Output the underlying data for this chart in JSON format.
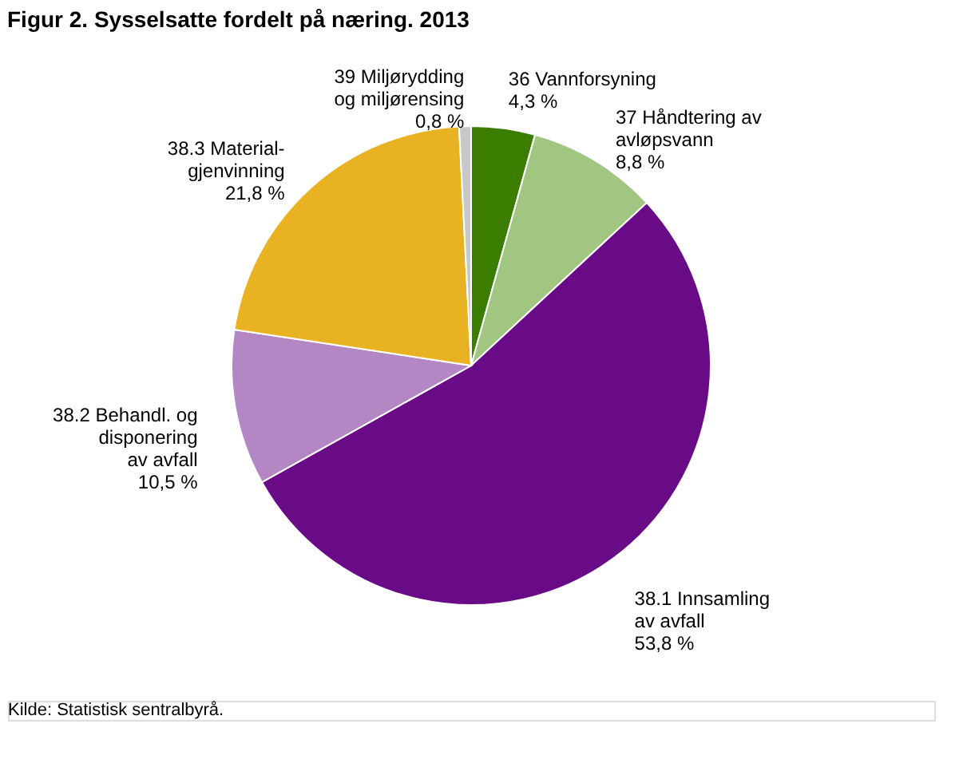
{
  "chart_data": {
    "type": "pie",
    "title": "Figur 2. Sysselsatte fordelt på næring. 2013",
    "categories": [
      "36 Vannforsyning",
      "37 Håndtering av\navløpsvann",
      "38.1  Innsamling\nav avfall",
      "38.2  Behandl.  og\ndisponering\nav avfall",
      "38.3  Material-\ngjenvinning",
      "39  Miljørydding\nog miljørensing"
    ],
    "values": [
      4.3,
      8.8,
      53.8,
      10.5,
      21.8,
      0.8
    ],
    "value_labels": [
      "4,3  %",
      "8,8  %",
      "53,8  %",
      "10,5  %",
      "21,8  %",
      "0,8  %"
    ],
    "colors": [
      "#3a7d00",
      "#a0c682",
      "#690a87",
      "#b386c4",
      "#e9b222",
      "#c8c8c8"
    ],
    "legend": false,
    "annotations": [
      "Kilde: Statistisk sentralbyrå."
    ]
  }
}
